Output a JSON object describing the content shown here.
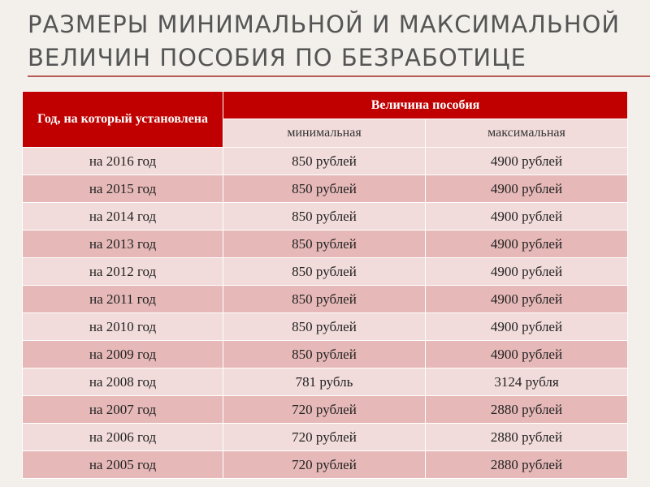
{
  "title": "РАЗМЕРЫ МИНИМАЛЬНОЙ И МАКСИМАЛЬНОЙ ВЕЛИЧИН ПОСОБИЯ ПО БЕЗРАБОТИЦЕ",
  "table": {
    "col_year": "Год, на который установлена",
    "col_amount": "Величина пособия",
    "col_min": "минимальная",
    "col_max": "максимальная",
    "rows": [
      {
        "year": "на 2016 год",
        "min": "850 рублей",
        "max": "4900 рублей"
      },
      {
        "year": "на 2015 год",
        "min": "850 рублей",
        "max": "4900 рублей"
      },
      {
        "year": "на 2014 год",
        "min": "850 рублей",
        "max": "4900 рублей"
      },
      {
        "year": "на 2013 год",
        "min": "850 рублей",
        "max": "4900 рублей"
      },
      {
        "year": "на 2012 год",
        "min": "850 рублей",
        "max": "4900 рублей"
      },
      {
        "year": "на 2011 год",
        "min": "850 рублей",
        "max": "4900 рублей"
      },
      {
        "year": "на 2010 год",
        "min": "850 рублей",
        "max": "4900 рублей"
      },
      {
        "year": "на 2009 год",
        "min": "850 рублей",
        "max": "4900 рублей"
      },
      {
        "year": "на 2008 год",
        "min": "781 рубль",
        "max": "3124 рубля"
      },
      {
        "year": "на 2007 год",
        "min": "720 рублей",
        "max": "2880 рублей"
      },
      {
        "year": "на 2006 год",
        "min": "720 рублей",
        "max": "2880 рублей"
      },
      {
        "year": "на 2005 год",
        "min": "720 рублей",
        "max": "2880 рублей"
      }
    ]
  },
  "colors": {
    "header": "#c00000",
    "row_light": "#f2dcdb",
    "row_dark": "#e6b9b8",
    "accent_line": "#b85a52"
  }
}
